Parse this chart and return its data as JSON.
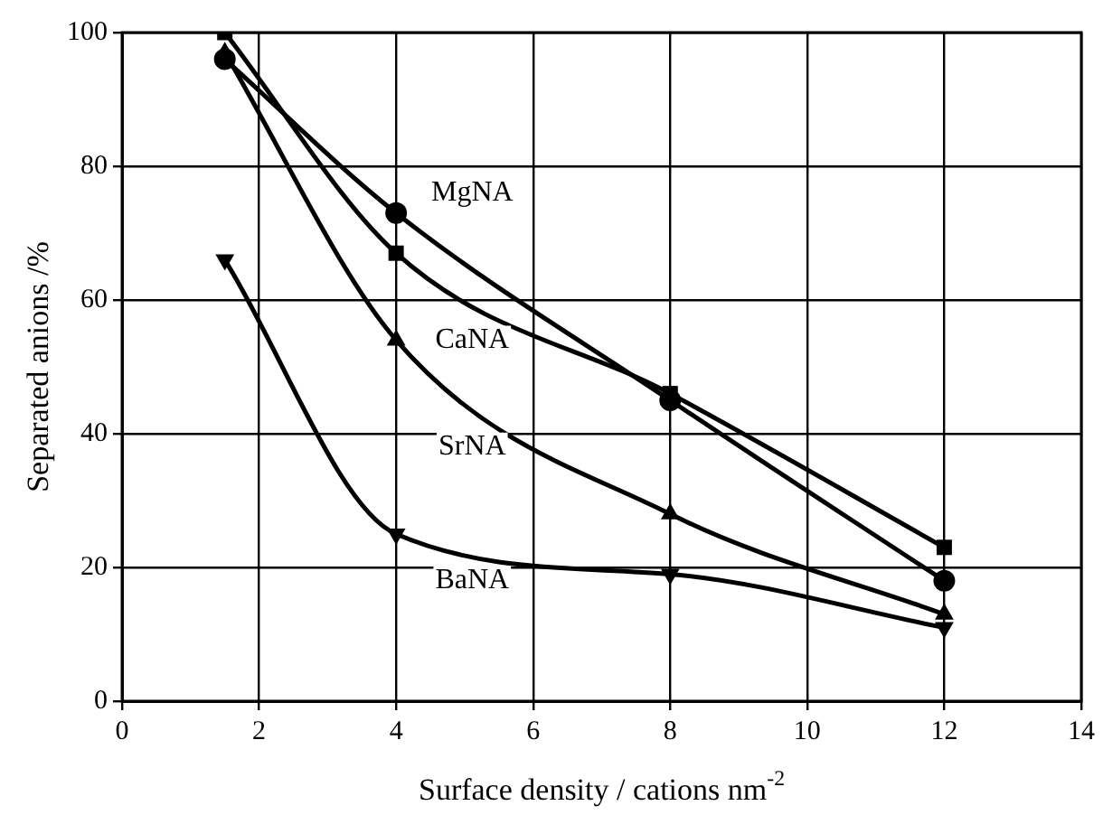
{
  "chart_data": {
    "type": "line",
    "xlabel": "Surface density / cations nm$^{-2}$",
    "ylabel": "Separated anions /%",
    "xlim": [
      0,
      14
    ],
    "xticks": [
      0,
      2,
      4,
      6,
      8,
      10,
      12,
      14
    ],
    "ylim": [
      0,
      100
    ],
    "yticks": [
      0,
      20,
      40,
      60,
      80,
      100
    ],
    "grid": true,
    "legend": false,
    "line_style": "solid",
    "series": [
      {
        "color": "#000000",
        "marker": "circle",
        "x": [
          1.5,
          4,
          8,
          12
        ],
        "values": [
          96,
          73,
          45,
          18
        ]
      },
      {
        "color": "#000000",
        "marker": "square",
        "x": [
          1.5,
          4,
          8,
          12
        ],
        "values": [
          100,
          67,
          46,
          23
        ]
      },
      {
        "color": "#000000",
        "marker": "triangle",
        "x": [
          1.5,
          4,
          8,
          12
        ],
        "values": [
          97,
          54,
          28,
          13
        ]
      },
      {
        "color": "#000000",
        "marker": "triangle-down",
        "x": [
          1.5,
          4,
          8,
          12
        ],
        "values": [
          66,
          25,
          19,
          11
        ]
      }
    ],
    "annotations": [
      "MgNA",
      "CaNA",
      "SrNA",
      "BaNA"
    ]
  }
}
